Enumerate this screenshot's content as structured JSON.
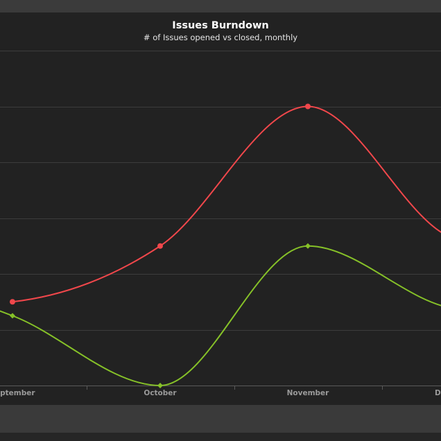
{
  "chart_data": {
    "type": "line",
    "title": "Issues Burndown",
    "subtitle": "# of Issues opened vs closed, monthly",
    "categories": [
      "September",
      "October",
      "November",
      "December"
    ],
    "series": [
      {
        "values": [
          6,
          10,
          20,
          10.5
        ],
        "color": "#f0474b",
        "marker": "circle"
      },
      {
        "values": [
          5,
          0,
          10,
          5.5
        ],
        "color": "#86c128",
        "marker": "diamond"
      }
    ],
    "ylim": [
      0,
      24
    ],
    "grid": true,
    "smooth": true
  }
}
